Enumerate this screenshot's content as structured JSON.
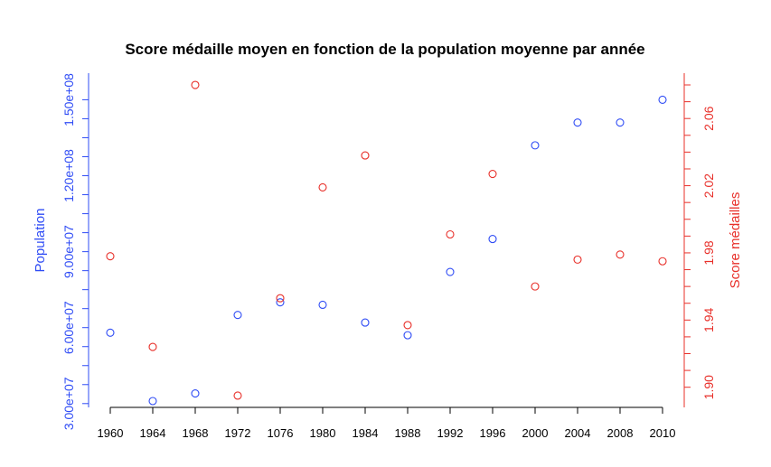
{
  "chart_data": {
    "type": "scatter",
    "title": "Score médaille moyen en fonction de la population moyenne par année",
    "xlabel": "",
    "x_categories": [
      "1960",
      "1964",
      "1968",
      "1972",
      "1076",
      "1980",
      "1984",
      "1988",
      "1992",
      "1996",
      "2000",
      "2004",
      "2008",
      "2010"
    ],
    "left_axis": {
      "label": "Population",
      "color": "#2f4cf5",
      "tick_values": [
        30000000,
        60000000,
        90000000,
        120000000,
        150000000
      ],
      "tick_labels": [
        "3.00e+07",
        "6.00e+07",
        "9.00e+07",
        "1.20e+08",
        "1.50e+08"
      ],
      "minor_step": 7500000,
      "range": [
        28500000,
        160500000
      ]
    },
    "right_axis": {
      "label": "Score médailles",
      "color": "#e8302a",
      "tick_values": [
        1.9,
        1.94,
        1.98,
        2.02,
        2.06
      ],
      "tick_labels": [
        "1.90",
        "1.94",
        "1.98",
        "2.02",
        "2.06"
      ],
      "minor_step": 0.01,
      "range": [
        1.888,
        2.087
      ]
    },
    "series": [
      {
        "name": "Population",
        "axis": "left",
        "color": "#2f4cf5",
        "values": [
          58000000,
          31000000,
          34000000,
          65000000,
          70000000,
          69000000,
          62000000,
          57000000,
          82000000,
          95000000,
          132000000,
          141000000,
          141000000,
          150000000
        ]
      },
      {
        "name": "Score médailles",
        "axis": "right",
        "color": "#e8302a",
        "values": [
          1.978,
          1.924,
          2.08,
          1.895,
          1.953,
          2.019,
          2.038,
          1.937,
          1.991,
          2.027,
          1.96,
          1.976,
          1.979,
          1.975
        ]
      }
    ],
    "grid": false,
    "legend": "none"
  }
}
